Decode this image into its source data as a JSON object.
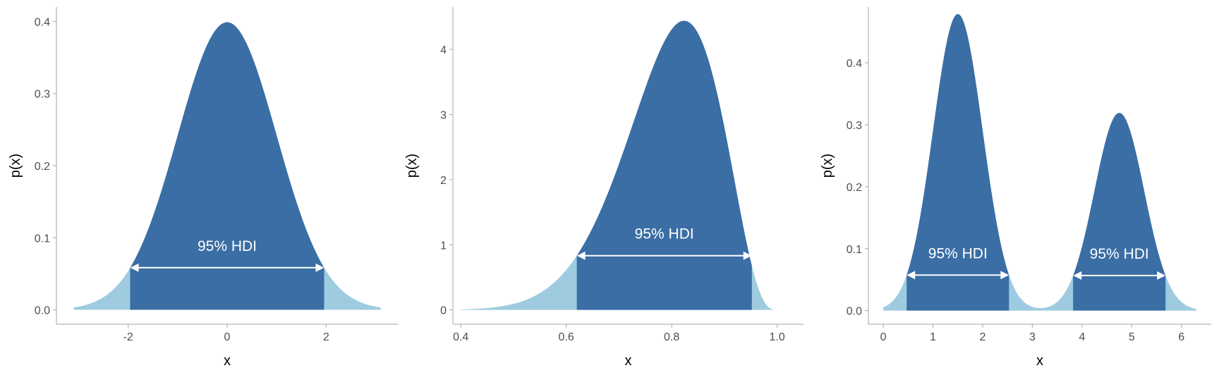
{
  "colors": {
    "hdi_fill": "#3a6ea5",
    "tail_fill": "#9ecbe0",
    "arrow": "#ffffff",
    "axis": "#b3b3b3",
    "hdi_label": "#ffffff"
  },
  "chart_data": [
    {
      "type": "area",
      "distribution": "normal",
      "params": {
        "mean": 0,
        "sd": 1
      },
      "x_range": [
        -3.1,
        3.1
      ],
      "xlim": [
        -3.45,
        3.45
      ],
      "ylim": [
        -0.02,
        0.42
      ],
      "xticks": [
        -2,
        0,
        2
      ],
      "xtick_labels": [
        "-2",
        "0",
        "2"
      ],
      "yticks": [
        0,
        0.1,
        0.2,
        0.3,
        0.4
      ],
      "ytick_labels": [
        "0.0",
        "0.1",
        "0.2",
        "0.3",
        "0.4"
      ],
      "xlabel": "x",
      "ylabel": "p(x)",
      "hdi_intervals": [
        [
          -1.96,
          1.96
        ]
      ],
      "hdi_label": "95% HDI",
      "peak_density": 0.399
    },
    {
      "type": "area",
      "distribution": "beta",
      "params": {
        "alpha": 15,
        "beta": 4
      },
      "x_range": [
        0.4,
        1.0
      ],
      "xlim": [
        0.385,
        1.05
      ],
      "ylim": [
        -0.22,
        4.65
      ],
      "xticks": [
        0.4,
        0.6,
        0.8,
        1.0
      ],
      "xtick_labels": [
        "0.4",
        "0.6",
        "0.8",
        "1.0"
      ],
      "yticks": [
        0,
        1,
        2,
        3,
        4
      ],
      "ytick_labels": [
        "0",
        "1",
        "2",
        "3",
        "4"
      ],
      "xlabel": "x",
      "ylabel": "p(x)",
      "hdi_intervals": [
        [
          0.62,
          0.952
        ]
      ],
      "hdi_label": "95% HDI",
      "peak_density": 4.43
    },
    {
      "type": "area",
      "distribution": "normal_mixture",
      "params": {
        "components": [
          {
            "weight": 0.6,
            "mean": 1.5,
            "sd": 0.5
          },
          {
            "weight": 0.4,
            "mean": 4.75,
            "sd": 0.5
          }
        ]
      },
      "x_range": [
        0,
        6.3
      ],
      "xlim": [
        -0.3,
        6.6
      ],
      "ylim": [
        -0.022,
        0.49
      ],
      "xticks": [
        0,
        1,
        2,
        3,
        4,
        5,
        6
      ],
      "xtick_labels": [
        "0",
        "1",
        "2",
        "3",
        "4",
        "5",
        "6"
      ],
      "yticks": [
        0,
        0.1,
        0.2,
        0.3,
        0.4
      ],
      "ytick_labels": [
        "0.0",
        "0.1",
        "0.2",
        "0.3",
        "0.4"
      ],
      "xlabel": "x",
      "ylabel": "p(x)",
      "hdi_intervals": [
        [
          0.47,
          2.53
        ],
        [
          3.82,
          5.68
        ]
      ],
      "hdi_label": "95% HDI",
      "peak_density": 0.47
    }
  ]
}
